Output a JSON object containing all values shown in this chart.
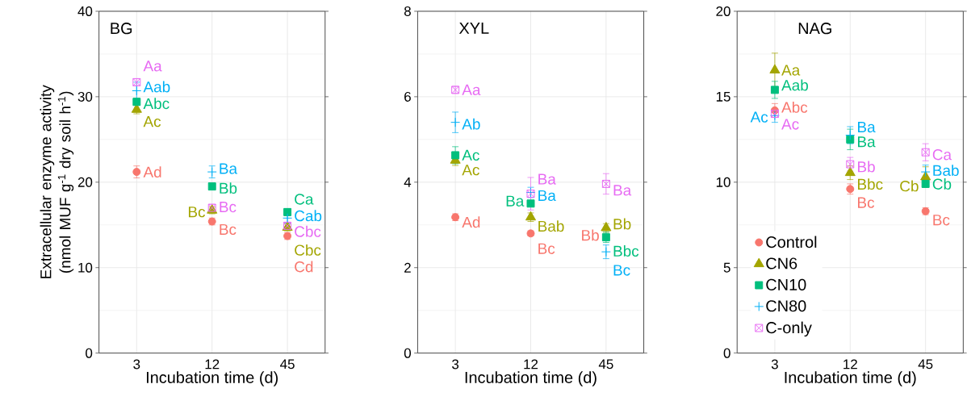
{
  "chart_data": [
    {
      "type": "scatter",
      "title": "BG",
      "categories": [
        "3",
        "12",
        "45"
      ],
      "xlabel": "Incubation time (d)",
      "ylabel": "Extracellular enzyme activity (nmol MUF g$^{-1}$ dry soil h$^{-1}$)",
      "ylim": [
        0,
        40
      ],
      "yticks": [
        0,
        10,
        20,
        30,
        40
      ],
      "grid": true,
      "series": [
        {
          "color": "#f8766d",
          "marker": "circle",
          "values": [
            21.2,
            15.4,
            13.7
          ],
          "errors": [
            0.7,
            0.4,
            0.4
          ]
        },
        {
          "color": "#a3a500",
          "marker": "triangle",
          "values": [
            28.5,
            16.7,
            14.7
          ],
          "errors": [
            0.5,
            0.4,
            0.4
          ]
        },
        {
          "color": "#00bf7d",
          "marker": "square",
          "values": [
            29.4,
            19.5,
            16.5
          ],
          "errors": [
            0.4,
            0.4,
            0.4
          ]
        },
        {
          "color": "#00b0f6",
          "marker": "cross",
          "values": [
            30.7,
            21.2,
            15.8
          ],
          "errors": [
            1.0,
            0.7,
            0.6
          ]
        },
        {
          "color": "#e76bf3",
          "marker": "cross",
          "values": [
            31.7,
            17.0,
            14.9
          ],
          "errors": [
            0.4,
            0.4,
            0.4
          ]
        }
      ],
      "annotations": [
        {
          "text": "Ad",
          "x": "3",
          "y": 21.2
        },
        {
          "text": "Bc",
          "x": "12",
          "y": 15.4
        },
        {
          "text": "Cd",
          "x": "45",
          "y": 13.7
        },
        {
          "text": "Ac",
          "x": "3",
          "y": 28.5
        },
        {
          "text": "Bc",
          "x": "12",
          "y": 16.7
        },
        {
          "text": "Cbc",
          "x": "45",
          "y": 14.7
        },
        {
          "text": "Abc",
          "x": "3",
          "y": 29.4
        },
        {
          "text": "Bb",
          "x": "12",
          "y": 19.5
        },
        {
          "text": "Ca",
          "x": "45",
          "y": 16.5
        },
        {
          "text": "Aab",
          "x": "3",
          "y": 30.7
        },
        {
          "text": "Ba",
          "x": "12",
          "y": 21.2
        },
        {
          "text": "Cab",
          "x": "45",
          "y": 15.8
        },
        {
          "text": "Aa",
          "x": "3",
          "y": 31.7
        },
        {
          "text": "Bc",
          "x": "12",
          "y": 17.0
        },
        {
          "text": "Cbc",
          "x": "45",
          "y": 14.9
        }
      ]
    },
    {
      "type": "scatter",
      "title": "XYL",
      "categories": [
        "3",
        "12",
        "45"
      ],
      "xlabel": "Incubation time (d)",
      "ylim": [
        0,
        8
      ],
      "yticks": [
        0,
        2,
        4,
        6,
        8
      ],
      "grid": true,
      "series": [
        {
          "color": "#f8766d",
          "marker": "circle",
          "values": [
            3.18,
            2.8,
            null
          ],
          "errors": [
            0.08,
            0.06,
            null
          ]
        },
        {
          "color": "#a3a500",
          "marker": "triangle",
          "values": [
            4.51,
            3.18,
            2.93
          ],
          "errors": [
            0.12,
            0.1,
            0.1
          ]
        },
        {
          "color": "#00bf7d",
          "marker": "square",
          "values": [
            4.63,
            3.5,
            2.71
          ],
          "errors": [
            0.2,
            null,
            0.12
          ]
        },
        {
          "color": "#00b0f6",
          "marker": "cross",
          "values": [
            5.4,
            3.76,
            2.37
          ],
          "errors": [
            0.24,
            0.12,
            0.16
          ]
        },
        {
          "color": "#e76bf3",
          "marker": "cross",
          "values": [
            6.16,
            3.73,
            3.96
          ],
          "errors": [
            0.08,
            0.38,
            0.24
          ]
        }
      ],
      "annotations": [
        {
          "text": "Ad",
          "x": "3",
          "y": 3.18
        },
        {
          "text": "Bc",
          "x": "12",
          "y": 2.8
        },
        {
          "text": "Bb",
          "x": "45",
          "y": 2.93
        },
        {
          "text": "Ac",
          "x": "3",
          "y": 4.51
        },
        {
          "text": "Bab",
          "x": "12",
          "y": 3.18
        },
        {
          "text": "Bb",
          "x": "45",
          "y": 2.93
        },
        {
          "text": "Ac",
          "x": "3",
          "y": 4.63
        },
        {
          "text": "Ba",
          "x": "12",
          "y": 3.5
        },
        {
          "text": "Bbc",
          "x": "45",
          "y": 2.71
        },
        {
          "text": "Ab",
          "x": "3",
          "y": 5.4
        },
        {
          "text": "Ba",
          "x": "12",
          "y": 3.76
        },
        {
          "text": "Bc",
          "x": "45",
          "y": 2.37
        },
        {
          "text": "Aa",
          "x": "3",
          "y": 6.16
        },
        {
          "text": "Ba",
          "x": "12",
          "y": 3.73
        },
        {
          "text": "Ba",
          "x": "45",
          "y": 3.96
        }
      ]
    },
    {
      "type": "scatter",
      "title": "NAG",
      "categories": [
        "3",
        "12",
        "45"
      ],
      "xlabel": "Incubation time (d)",
      "ylim": [
        0,
        20
      ],
      "yticks": [
        0,
        5,
        10,
        15,
        20
      ],
      "grid": true,
      "legend": "bottom left",
      "series": [
        {
          "name": "Control",
          "color": "#f8766d",
          "marker": "circle",
          "values": [
            14.2,
            9.6,
            8.3
          ],
          "errors": [
            0.4,
            0.3,
            0.2
          ]
        },
        {
          "name": "CN6",
          "color": "#a3a500",
          "marker": "triangle",
          "values": [
            16.55,
            10.55,
            10.3
          ],
          "errors": [
            1.0,
            0.4,
            0.6
          ]
        },
        {
          "name": "CN10",
          "color": "#00bf7d",
          "marker": "square",
          "values": [
            15.4,
            12.5,
            9.9
          ],
          "errors": [
            0.5,
            0.6,
            null
          ]
        },
        {
          "name": "CN80",
          "color": "#00b0f6",
          "marker": "cross",
          "values": [
            13.9,
            12.75,
            10.6
          ],
          "errors": [
            0.4,
            0.5,
            0.4
          ]
        },
        {
          "name": "C-only",
          "color": "#e76bf3",
          "marker": "cross",
          "values": [
            14.0,
            11.05,
            11.75
          ],
          "errors": [
            null,
            0.4,
            0.5
          ]
        }
      ],
      "annotations": [
        {
          "text": "Abc",
          "x": "3",
          "y": 14.2
        },
        {
          "text": "Bc",
          "x": "12",
          "y": 9.6
        },
        {
          "text": "Bc",
          "x": "45",
          "y": 8.3
        },
        {
          "text": "Aa",
          "x": "3",
          "y": 16.55
        },
        {
          "text": "Bbc",
          "x": "12",
          "y": 10.55
        },
        {
          "text": "Cb",
          "x": "45",
          "y": 10.3
        },
        {
          "text": "Aab",
          "x": "3",
          "y": 15.4
        },
        {
          "text": "Ba",
          "x": "12",
          "y": 12.5
        },
        {
          "text": "Cb",
          "x": "45",
          "y": 9.9
        },
        {
          "text": "Ac",
          "x": "3",
          "y": 13.9
        },
        {
          "text": "Ba",
          "x": "12",
          "y": 12.75
        },
        {
          "text": "Bab",
          "x": "45",
          "y": 10.6
        },
        {
          "text": "Ac",
          "x": "3",
          "y": 14.0
        },
        {
          "text": "Bb",
          "x": "12",
          "y": 11.05
        },
        {
          "text": "Ca",
          "x": "45",
          "y": 11.75
        }
      ]
    }
  ]
}
